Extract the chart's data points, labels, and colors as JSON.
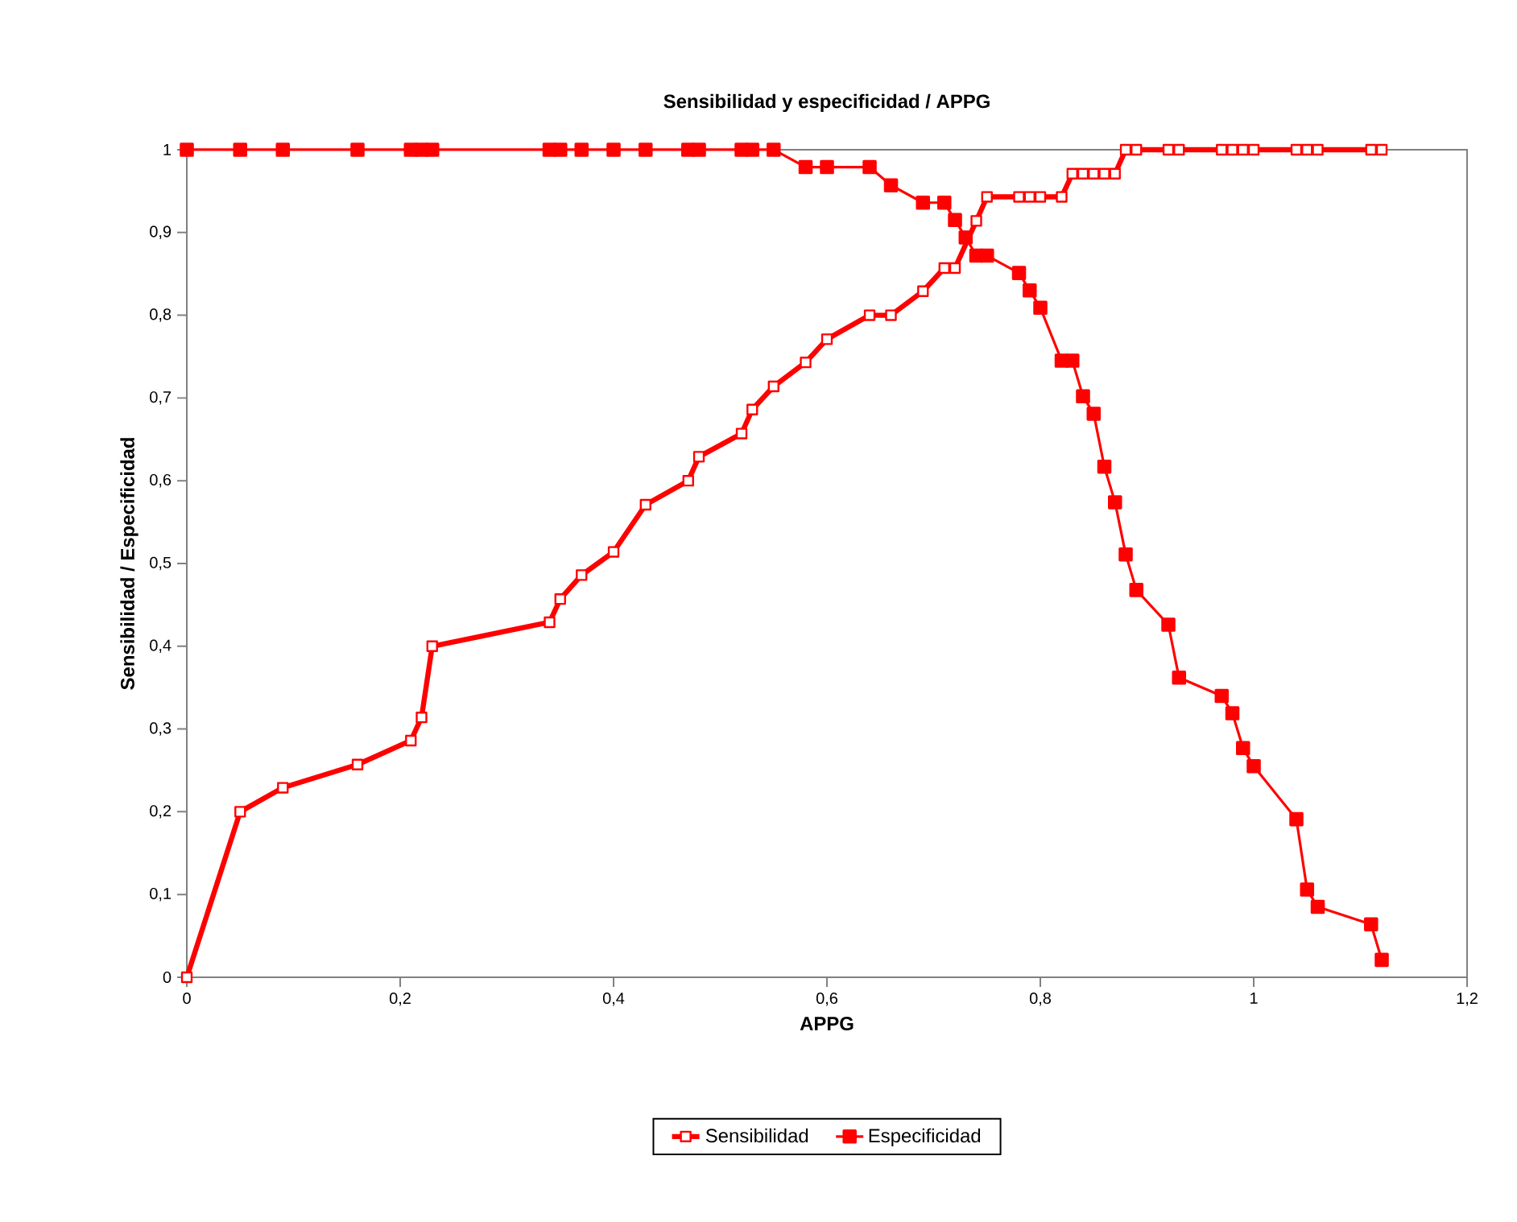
{
  "chart_data": {
    "type": "line",
    "title": "Sensibilidad y especificidad / APPG",
    "xlabel": "APPG",
    "ylabel": "Sensibilidad / Especificidad",
    "xlim": [
      0,
      1.2
    ],
    "ylim": [
      0,
      1
    ],
    "xticks": [
      0,
      {
        "value": 0.2,
        "label": "0,2"
      },
      {
        "value": 0.4,
        "label": "0,4"
      },
      {
        "value": 0.6,
        "label": "0,6"
      },
      {
        "value": 0.8,
        "label": "0,8"
      },
      1,
      {
        "value": 1.2,
        "label": "1,2"
      }
    ],
    "yticks": [
      0,
      {
        "value": 0.1,
        "label": "0,1"
      },
      {
        "value": 0.2,
        "label": "0,2"
      },
      {
        "value": 0.3,
        "label": "0,3"
      },
      {
        "value": 0.4,
        "label": "0,4"
      },
      {
        "value": 0.5,
        "label": "0,5"
      },
      {
        "value": 0.6,
        "label": "0,6"
      },
      {
        "value": 0.7,
        "label": "0,7"
      },
      {
        "value": 0.8,
        "label": "0,8"
      },
      {
        "value": 0.9,
        "label": "0,9"
      },
      1
    ],
    "grid": false,
    "legend": "bottom",
    "marker": "square",
    "line_style": "solid",
    "series": [
      {
        "name": "Sensibilidad",
        "color": "#ff0000",
        "x": [
          0,
          0.05,
          0.09,
          0.16,
          0.21,
          0.22,
          0.23,
          0.34,
          0.35,
          0.37,
          0.4,
          0.43,
          0.47,
          0.48,
          0.52,
          0.53,
          0.55,
          0.58,
          0.6,
          0.64,
          0.66,
          0.69,
          0.71,
          0.72,
          0.73,
          0.74,
          0.75,
          0.78,
          0.79,
          0.8,
          0.82,
          0.83,
          0.84,
          0.85,
          0.86,
          0.87,
          0.88,
          0.89,
          0.92,
          0.93,
          0.97,
          0.98,
          0.99,
          1.0,
          1.04,
          1.05,
          1.06,
          1.11,
          1.12
        ],
        "values": [
          0,
          0.2,
          0.229,
          0.257,
          0.286,
          0.314,
          0.4,
          0.429,
          0.457,
          0.486,
          0.514,
          0.571,
          0.6,
          0.629,
          0.657,
          0.686,
          0.714,
          0.743,
          0.771,
          0.8,
          0.8,
          0.829,
          0.857,
          0.857,
          null,
          0.914,
          0.943,
          0.943,
          0.943,
          0.943,
          0.943,
          0.971,
          0.971,
          0.971,
          0.971,
          0.971,
          1,
          1,
          1,
          1,
          1,
          1,
          1,
          1,
          1,
          1,
          1,
          1,
          1
        ]
      },
      {
        "name": "Especificidad",
        "color": "#ff0000",
        "x": [
          0,
          0.05,
          0.09,
          0.16,
          0.21,
          0.22,
          0.23,
          0.34,
          0.35,
          0.37,
          0.4,
          0.43,
          0.47,
          0.48,
          0.52,
          0.53,
          0.55,
          0.58,
          0.6,
          0.64,
          0.66,
          0.69,
          0.71,
          0.72,
          0.73,
          0.74,
          0.75,
          0.78,
          0.79,
          0.8,
          0.82,
          0.83,
          0.84,
          0.85,
          0.86,
          0.87,
          0.88,
          0.89,
          0.92,
          0.93,
          0.97,
          0.98,
          0.99,
          1.0,
          1.04,
          1.05,
          1.06,
          1.11,
          1.12
        ],
        "values": [
          1,
          1,
          1,
          1,
          1,
          1,
          1,
          1,
          1,
          1,
          1,
          1,
          1,
          1,
          1,
          1,
          1,
          0.979,
          0.979,
          0.979,
          0.957,
          0.936,
          0.936,
          0.915,
          0.894,
          0.872,
          0.872,
          0.851,
          0.83,
          0.809,
          0.745,
          0.745,
          0.702,
          0.681,
          0.617,
          0.574,
          0.511,
          0.468,
          0.426,
          0.362,
          0.34,
          0.319,
          0.277,
          0.255,
          0.191,
          0.106,
          0.085,
          0.064,
          0.021
        ]
      }
    ]
  }
}
